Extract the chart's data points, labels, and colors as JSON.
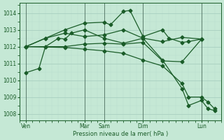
{
  "bg_color": "#c5e8d5",
  "grid_major_color": "#a8cfc0",
  "grid_minor_color": "#b8ddd0",
  "line_color": "#1a5c28",
  "xlabel": "Pression niveau de la mer( hPa )",
  "yticks": [
    1008,
    1009,
    1010,
    1011,
    1012,
    1013,
    1014
  ],
  "ylim": [
    1007.6,
    1014.6
  ],
  "xtick_labels": [
    "Ven",
    "Mar",
    "Sam",
    "Dim",
    "Lun"
  ],
  "xtick_positions": [
    0,
    9,
    12,
    18,
    27
  ],
  "xlim": [
    -1,
    30
  ],
  "vline_positions": [
    0,
    9,
    12,
    18,
    27
  ],
  "vline_color": "#507060",
  "vline_linewidth": 0.6,
  "series": [
    {
      "x": [
        0,
        3,
        6,
        9,
        12,
        15,
        18,
        21,
        24,
        27
      ],
      "y": [
        1012.0,
        1012.0,
        1012.0,
        1012.15,
        1012.2,
        1012.15,
        1012.25,
        1011.15,
        1011.1,
        1012.45
      ],
      "marker": "D",
      "markersize": 2.5,
      "linewidth": 0.9
    },
    {
      "x": [
        0,
        3,
        6,
        9,
        12,
        13,
        15,
        16,
        18,
        21,
        22,
        24,
        25,
        27
      ],
      "y": [
        1012.0,
        1012.5,
        1013.0,
        1013.4,
        1013.45,
        1013.3,
        1014.1,
        1014.15,
        1012.6,
        1013.0,
        1012.5,
        1012.25,
        1012.3,
        1012.45
      ],
      "marker": "D",
      "markersize": 2.5,
      "linewidth": 0.9
    },
    {
      "x": [
        0,
        3,
        6,
        9,
        12,
        15,
        18,
        21,
        24,
        27
      ],
      "y": [
        1012.0,
        1012.5,
        1012.8,
        1012.6,
        1012.7,
        1013.0,
        1012.5,
        1012.3,
        1012.55,
        1012.45
      ],
      "marker": "D",
      "markersize": 2.5,
      "linewidth": 0.9
    },
    {
      "x": [
        0,
        6,
        9,
        12,
        15,
        18,
        21,
        24,
        25,
        27,
        28,
        29
      ],
      "y": [
        1012.0,
        1011.95,
        1011.85,
        1011.75,
        1011.6,
        1011.2,
        1010.85,
        1009.8,
        1009.0,
        1009.0,
        1008.7,
        1008.3
      ],
      "marker": "D",
      "markersize": 2.5,
      "linewidth": 0.9
    },
    {
      "x": [
        0,
        2,
        3,
        5,
        6,
        7,
        9,
        12,
        15,
        18,
        21,
        24,
        25,
        27,
        28,
        29
      ],
      "y": [
        1010.45,
        1010.7,
        1012.0,
        1012.5,
        1012.45,
        1012.8,
        1013.0,
        1012.5,
        1012.2,
        1012.5,
        1011.2,
        1009.5,
        1008.5,
        1008.8,
        1008.3,
        1008.2
      ],
      "marker": "D",
      "markersize": 2.5,
      "linewidth": 0.9
    }
  ]
}
